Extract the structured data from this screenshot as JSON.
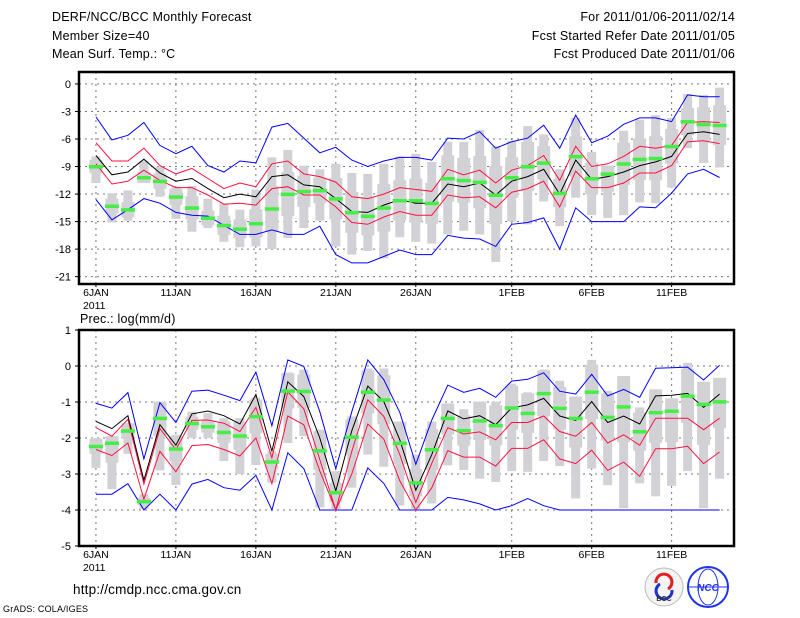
{
  "header": {
    "title": "DERF/NCC/BCC Monthly Forecast",
    "member_size": "Member Size=40",
    "period": "For 2011/01/06-2011/02/14",
    "started": "Fcst Started Refer Date 2011/01/05",
    "produced": "Fcst Produced Date 2011/01/06"
  },
  "footer": {
    "url": "http://cmdp.ncc.cma.gov.cn",
    "credit": "GrADS: COLA/IGES",
    "logo_bcc": "BCC",
    "logo_ncc": "NCC"
  },
  "colors": {
    "blue": "#0000ff",
    "red": "#ff1040",
    "mean": "#000000",
    "marker": "#44ee44",
    "range": "#d2d2d6"
  },
  "chart_data": [
    {
      "type": "line",
      "title": "Mean Surf. Temp.: °C",
      "x_ticks": [
        {
          "day": 0,
          "label": "6JAN"
        },
        {
          "day": 5,
          "label": "11JAN"
        },
        {
          "day": 10,
          "label": "16JAN"
        },
        {
          "day": 15,
          "label": "21JAN"
        },
        {
          "day": 20,
          "label": "26JAN"
        },
        {
          "day": 26,
          "label": "1FEB"
        },
        {
          "day": 31,
          "label": "6FEB"
        },
        {
          "day": 36,
          "label": "11FEB"
        }
      ],
      "year_label": "2011",
      "y_ticks": [
        0,
        -3,
        -6,
        -9,
        -12,
        -15,
        -18,
        -21
      ],
      "ylim": [
        -21.8,
        1.3
      ],
      "xlim": [
        -1.06,
        39.9
      ],
      "grid": true,
      "blue_upper": [
        -3.6,
        -6.1,
        -5.6,
        -4.2,
        -6.7,
        -7.6,
        -6.8,
        -8.9,
        -9.6,
        -8.4,
        -8.6,
        -4.7,
        -4.3,
        -5.9,
        -7.5,
        -6.9,
        -8.3,
        -9.0,
        -8.4,
        -8.0,
        -8.0,
        -8.3,
        -5.9,
        -6.0,
        -5.2,
        -7.0,
        -6.3,
        -5.9,
        -4.5,
        -7.0,
        -3.4,
        -6.4,
        -5.7,
        -4.4,
        -3.7,
        -3.7,
        -4.1,
        -1.2,
        -1.4,
        -1.4
      ],
      "red_upper": [
        -6.4,
        -8.4,
        -8.4,
        -7.0,
        -8.9,
        -9.8,
        -9.2,
        -10.3,
        -11.4,
        -10.8,
        -11.2,
        -8.7,
        -8.4,
        -9.8,
        -10.1,
        -10.7,
        -12.3,
        -12.5,
        -12.0,
        -11.3,
        -11.5,
        -11.7,
        -9.3,
        -9.9,
        -9.4,
        -10.8,
        -9.4,
        -8.9,
        -7.8,
        -10.5,
        -6.8,
        -9.0,
        -8.7,
        -7.9,
        -6.8,
        -7.0,
        -6.7,
        -4.2,
        -4.1,
        -4.2
      ],
      "mean": [
        -7.8,
        -9.9,
        -9.6,
        -8.2,
        -9.7,
        -10.6,
        -10.3,
        -11.4,
        -12.4,
        -12.0,
        -12.3,
        -10.1,
        -9.9,
        -11.0,
        -11.2,
        -12.5,
        -13.9,
        -14.0,
        -13.2,
        -12.6,
        -13.0,
        -13.0,
        -10.9,
        -11.2,
        -10.8,
        -12.1,
        -10.6,
        -10.1,
        -9.3,
        -12.0,
        -8.3,
        -10.4,
        -10.1,
        -9.6,
        -8.9,
        -8.5,
        -7.9,
        -5.4,
        -5.2,
        -5.5
      ],
      "red_lower": [
        -8.7,
        -10.9,
        -10.6,
        -9.4,
        -10.5,
        -11.3,
        -11.3,
        -12.1,
        -13.1,
        -13.0,
        -13.2,
        -11.4,
        -11.2,
        -12.1,
        -12.1,
        -13.4,
        -15.1,
        -15.3,
        -14.5,
        -13.9,
        -14.3,
        -14.3,
        -12.1,
        -12.4,
        -12.3,
        -13.5,
        -11.8,
        -11.4,
        -10.6,
        -13.4,
        -9.5,
        -11.3,
        -11.3,
        -10.8,
        -9.7,
        -9.7,
        -8.9,
        -6.3,
        -6.2,
        -6.5
      ],
      "blue_lower": [
        -12.6,
        -14.8,
        -13.7,
        -12.5,
        -13.0,
        -14.0,
        -14.3,
        -14.4,
        -15.4,
        -16.4,
        -16.4,
        -15.9,
        -16.4,
        -16.4,
        -15.5,
        -18.6,
        -19.5,
        -19.5,
        -18.8,
        -18.1,
        -18.6,
        -18.6,
        -16.5,
        -16.8,
        -16.9,
        -17.7,
        -15.3,
        -15.1,
        -14.6,
        -18.0,
        -13.5,
        -15.0,
        -15.0,
        -15.0,
        -13.4,
        -13.5,
        -11.9,
        -9.8,
        -9.3,
        -10.2
      ],
      "markers": [
        -9.0,
        -13.3,
        -13.7,
        -10.2,
        -10.6,
        -12.3,
        -13.5,
        -14.6,
        -15.4,
        -15.8,
        -15.2,
        -13.6,
        -12.0,
        -11.7,
        -11.6,
        -12.5,
        -14.0,
        -14.4,
        -13.5,
        -12.7,
        -12.7,
        -13.0,
        -10.3,
        -10.5,
        -10.7,
        -12.1,
        -10.2,
        -9.0,
        -8.6,
        -11.9,
        -7.9,
        -10.3,
        -9.8,
        -8.7,
        -8.2,
        -8.1,
        -6.8,
        -4.1,
        -4.4,
        -4.5
      ],
      "range_hi": [
        -7.9,
        -11.9,
        -11.6,
        -8.4,
        -9.0,
        -11.2,
        -11.1,
        -12.5,
        -13.0,
        -13.7,
        -11.5,
        -8.0,
        -7.2,
        -8.9,
        -9.3,
        -8.7,
        -9.7,
        -9.8,
        -8.7,
        -7.9,
        -7.6,
        -8.5,
        -6.3,
        -6.3,
        -5.0,
        -6.8,
        -6.2,
        -4.6,
        -5.5,
        -9.3,
        -3.7,
        -7.4,
        -8.9,
        -5.1,
        -3.9,
        -3.4,
        -3.7,
        -1.1,
        -1.2,
        -0.4
      ],
      "range_lo": [
        -10.8,
        -15.1,
        -14.9,
        -10.8,
        -12.3,
        -14.7,
        -16.1,
        -15.7,
        -17.2,
        -17.8,
        -17.7,
        -18.0,
        -16.8,
        -15.7,
        -14.9,
        -17.7,
        -18.6,
        -18.2,
        -19.0,
        -16.7,
        -17.2,
        -17.4,
        -16.4,
        -16.0,
        -16.4,
        -19.4,
        -15.0,
        -15.3,
        -12.8,
        -15.5,
        -12.4,
        -14.3,
        -14.6,
        -14.3,
        -12.9,
        -13.0,
        -11.3,
        -7.0,
        -8.6,
        -9.1
      ]
    },
    {
      "type": "line",
      "title": "Prec.: log(mm/d)",
      "x_ticks": [
        {
          "day": 0,
          "label": "6JAN"
        },
        {
          "day": 5,
          "label": "11JAN"
        },
        {
          "day": 10,
          "label": "16JAN"
        },
        {
          "day": 15,
          "label": "21JAN"
        },
        {
          "day": 20,
          "label": "26JAN"
        },
        {
          "day": 26,
          "label": "1FEB"
        },
        {
          "day": 31,
          "label": "6FEB"
        },
        {
          "day": 36,
          "label": "11FEB"
        }
      ],
      "year_label": "2011",
      "y_ticks": [
        1,
        0,
        -1,
        -2,
        -3,
        -4,
        -5
      ],
      "ylim": [
        -5,
        1
      ],
      "xlim": [
        -1.06,
        39.9
      ],
      "grid": true,
      "blue_upper": [
        -1.04,
        -1.17,
        -0.74,
        -2.58,
        -1.02,
        -1.57,
        -0.7,
        -0.67,
        -0.81,
        -0.96,
        -0.17,
        -1.66,
        0.17,
        -0.01,
        -1.27,
        -2.85,
        -1.27,
        0.17,
        -0.38,
        -1.29,
        -2.73,
        -1.5,
        -0.53,
        -0.73,
        -0.62,
        -0.87,
        -0.42,
        -0.37,
        -0.19,
        -0.7,
        -0.78,
        -0.23,
        -0.83,
        -0.65,
        -0.87,
        -0.06,
        -0.05,
        -0.03,
        -0.39,
        0.02
      ],
      "red_upper": [
        -1.71,
        -1.95,
        -1.48,
        -3.28,
        -1.74,
        -2.32,
        -1.51,
        -1.5,
        -1.59,
        -1.82,
        -1.15,
        -2.55,
        -0.72,
        -1.19,
        -2.6,
        -4.0,
        -2.37,
        -0.94,
        -1.4,
        -2.46,
        -3.79,
        -2.7,
        -1.71,
        -1.89,
        -1.83,
        -2.05,
        -1.57,
        -1.57,
        -1.39,
        -1.82,
        -1.95,
        -1.57,
        -2.14,
        -1.91,
        -2.2,
        -1.45,
        -1.45,
        -1.45,
        -1.77,
        -1.45
      ],
      "mean": [
        -1.54,
        -1.74,
        -1.38,
        -3.17,
        -1.63,
        -2.2,
        -1.33,
        -1.25,
        -1.38,
        -1.61,
        -0.79,
        -2.37,
        -0.44,
        -0.85,
        -2.0,
        -3.47,
        -1.8,
        -0.56,
        -0.99,
        -2.05,
        -3.45,
        -2.46,
        -1.25,
        -1.47,
        -1.38,
        -1.63,
        -1.16,
        -1.08,
        -0.9,
        -1.39,
        -1.51,
        -0.99,
        -1.57,
        -1.39,
        -1.61,
        -0.83,
        -0.81,
        -0.76,
        -1.15,
        -0.78
      ],
      "red_lower": [
        -2.32,
        -2.49,
        -2.14,
        -3.7,
        -2.37,
        -2.94,
        -2.21,
        -2.18,
        -2.32,
        -2.5,
        -2.0,
        -3.27,
        -1.39,
        -1.63,
        -2.92,
        -4.0,
        -3.0,
        -1.61,
        -2.03,
        -3.19,
        -4.0,
        -3.38,
        -2.35,
        -2.53,
        -2.53,
        -2.78,
        -2.29,
        -2.29,
        -2.05,
        -2.58,
        -2.71,
        -2.34,
        -2.9,
        -2.67,
        -3.06,
        -2.3,
        -2.3,
        -2.23,
        -2.71,
        -2.39
      ],
      "blue_lower": [
        -3.56,
        -3.56,
        -3.27,
        -4.0,
        -3.56,
        -4.0,
        -3.28,
        -3.15,
        -3.38,
        -3.45,
        -3.04,
        -4.0,
        -2.41,
        -2.85,
        -4.0,
        -4.0,
        -4.0,
        -2.83,
        -3.26,
        -4.0,
        -4.0,
        -4.0,
        -3.65,
        -3.72,
        -3.83,
        -4.0,
        -3.88,
        -3.68,
        -3.88,
        -4.0,
        -4.0,
        -4.0,
        -4.0,
        -4.0,
        -4.0,
        -4.0,
        -4.0,
        -4.0,
        -4.0,
        -4.0
      ],
      "markers": [
        -2.23,
        -2.14,
        -1.8,
        -3.76,
        -1.45,
        -2.3,
        -1.59,
        -1.68,
        -1.84,
        -1.94,
        -1.4,
        -2.66,
        -0.69,
        -0.7,
        -2.35,
        -3.51,
        -1.97,
        -0.72,
        -0.94,
        -2.14,
        -3.24,
        -2.32,
        -1.45,
        -1.79,
        -1.52,
        -1.65,
        -1.16,
        -1.31,
        -0.76,
        -1.17,
        -1.45,
        -0.72,
        -1.42,
        -1.13,
        -1.82,
        -1.29,
        -1.25,
        -0.83,
        -1.06,
        -0.99
      ],
      "range_hi": [
        -2.0,
        -1.95,
        -1.59,
        -3.56,
        -0.99,
        -1.91,
        -1.27,
        -1.31,
        -1.45,
        -1.45,
        -0.88,
        -2.37,
        -0.18,
        -0.1,
        -1.77,
        -2.92,
        -1.4,
        -0.07,
        -0.07,
        -1.54,
        -2.46,
        -1.54,
        -1.04,
        -1.2,
        -0.99,
        -0.99,
        -0.49,
        -0.73,
        -0.1,
        -0.41,
        -0.85,
        0.17,
        -0.69,
        -0.28,
        -1.15,
        -0.65,
        -0.9,
        0.09,
        -0.44,
        -0.33
      ],
      "range_lo": [
        -2.83,
        -3.42,
        -2.44,
        -3.97,
        -2.9,
        -3.31,
        -2.0,
        -2.0,
        -2.64,
        -3.0,
        -2.75,
        -3.24,
        -2.14,
        -1.95,
        -3.93,
        -3.97,
        -3.38,
        -2.46,
        -2.8,
        -3.88,
        -3.97,
        -3.82,
        -2.76,
        -2.89,
        -3.13,
        -3.22,
        -2.92,
        -2.94,
        -2.64,
        -2.78,
        -3.68,
        -2.85,
        -3.31,
        -3.95,
        -3.26,
        -3.62,
        -3.33,
        -2.92,
        -3.95,
        -3.13
      ]
    }
  ]
}
